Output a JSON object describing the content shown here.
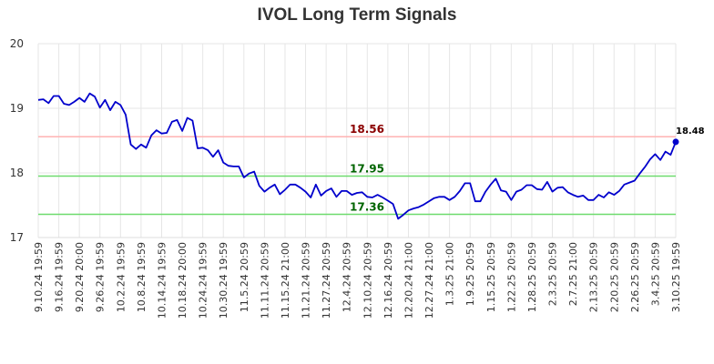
{
  "chart_data": {
    "type": "line",
    "title": "IVOL Long Term Signals",
    "xlabel": "",
    "ylabel": "",
    "ylim": [
      17,
      20
    ],
    "yticks": [
      17,
      18,
      19,
      20
    ],
    "grid": true,
    "x_tick_labels": [
      "9.10.24 19:59",
      "9.16.24 19:59",
      "9.20.24 20:00",
      "9.26.24 19:59",
      "10.2.24 19:59",
      "10.8.24 19:59",
      "10.14.24 19:59",
      "10.18.24 20:00",
      "10.24.24 19:59",
      "10.30.24 19:59",
      "11.5.24 20:59",
      "11.11.24 20:59",
      "11.15.24 21:00",
      "11.21.24 20:59",
      "11.27.24 20:59",
      "12.4.24 20:59",
      "12.10.24 20:59",
      "12.16.24 20:59",
      "12.20.24 21:00",
      "12.27.24 21:00",
      "1.3.25 21:00",
      "1.9.25 20:59",
      "1.15.25 20:59",
      "1.22.25 20:59",
      "1.28.25 20:59",
      "2.3.25 20:59",
      "2.7.25 21:00",
      "2.13.25 20:59",
      "2.20.25 20:59",
      "2.26.25 20:59",
      "3.4.25 20:59",
      "3.10.25 19:59"
    ],
    "series": [
      {
        "color": "#0000cc",
        "values": [
          19.13,
          19.14,
          19.08,
          19.19,
          19.19,
          19.07,
          19.05,
          19.1,
          19.16,
          19.1,
          19.23,
          19.18,
          19.01,
          19.13,
          18.97,
          19.1,
          19.05,
          18.9,
          18.44,
          18.37,
          18.44,
          18.39,
          18.58,
          18.66,
          18.61,
          18.62,
          18.79,
          18.82,
          18.65,
          18.85,
          18.81,
          18.38,
          18.39,
          18.35,
          18.25,
          18.35,
          18.16,
          18.11,
          18.1,
          18.1,
          17.93,
          17.99,
          18.02,
          17.8,
          17.71,
          17.77,
          17.82,
          17.67,
          17.74,
          17.82,
          17.82,
          17.77,
          17.71,
          17.62,
          17.82,
          17.65,
          17.72,
          17.76,
          17.63,
          17.72,
          17.72,
          17.66,
          17.69,
          17.7,
          17.63,
          17.62,
          17.66,
          17.62,
          17.57,
          17.52,
          17.29,
          17.35,
          17.42,
          17.45,
          17.47,
          17.51,
          17.56,
          17.61,
          17.63,
          17.63,
          17.58,
          17.63,
          17.72,
          17.84,
          17.84,
          17.56,
          17.56,
          17.71,
          17.82,
          17.91,
          17.73,
          17.71,
          17.58,
          17.71,
          17.74,
          17.81,
          17.81,
          17.75,
          17.74,
          17.86,
          17.71,
          17.77,
          17.78,
          17.7,
          17.66,
          17.63,
          17.65,
          17.58,
          17.58,
          17.66,
          17.62,
          17.7,
          17.66,
          17.72,
          17.82,
          17.85,
          17.88,
          17.99,
          18.09,
          18.21,
          18.29,
          18.2,
          18.33,
          18.28,
          18.48
        ]
      }
    ],
    "reference_lines": [
      {
        "value": 18.56,
        "label": "18.56",
        "line_color": "#ffb3b3",
        "label_color": "#8b0000"
      },
      {
        "value": 17.95,
        "label": "17.95",
        "line_color": "#6ddb6d",
        "label_color": "#006400"
      },
      {
        "value": 17.36,
        "label": "17.36",
        "line_color": "#6ddb6d",
        "label_color": "#006400"
      }
    ],
    "last_value": 18.48,
    "last_value_label": "18.48"
  }
}
